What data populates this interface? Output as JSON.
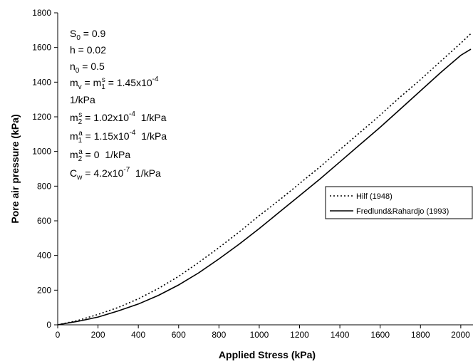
{
  "chart_data": {
    "type": "line",
    "xlabel": "Applied Stress (kPa)",
    "ylabel": "Pore air pressure (kPa)",
    "xlim": [
      0,
      2050
    ],
    "ylim": [
      0,
      1800
    ],
    "xticks": [
      0,
      200,
      400,
      600,
      800,
      1000,
      1200,
      1400,
      1600,
      1800,
      2000
    ],
    "yticks": [
      0,
      200,
      400,
      600,
      800,
      1000,
      1200,
      1400,
      1600,
      1800
    ],
    "grid": false,
    "legend_position": "right",
    "series": [
      {
        "name": "Hilf (1948)",
        "style": "dotted",
        "color": "#000000",
        "x": [
          0,
          100,
          200,
          300,
          400,
          500,
          600,
          700,
          800,
          900,
          1000,
          1100,
          1200,
          1300,
          1400,
          1500,
          1600,
          1700,
          1800,
          1900,
          2000,
          2050
        ],
        "y": [
          0,
          25,
          60,
          100,
          150,
          210,
          280,
          360,
          445,
          535,
          630,
          720,
          815,
          910,
          1010,
          1110,
          1210,
          1315,
          1415,
          1520,
          1625,
          1680
        ]
      },
      {
        "name": "Fredlund&Rahardjo (1993)",
        "style": "solid",
        "color": "#000000",
        "x": [
          0,
          100,
          200,
          300,
          400,
          500,
          600,
          700,
          800,
          900,
          1000,
          1100,
          1200,
          1300,
          1400,
          1500,
          1600,
          1700,
          1800,
          1900,
          2000,
          2050
        ],
        "y": [
          0,
          20,
          45,
          80,
          120,
          170,
          230,
          300,
          380,
          465,
          555,
          650,
          745,
          840,
          940,
          1040,
          1140,
          1245,
          1350,
          1455,
          1555,
          1590
        ]
      }
    ],
    "annotations": {
      "s0": {
        "base": "S",
        "sub": "0",
        "rest": " = 0.9"
      },
      "h": "h = 0.02",
      "n0": {
        "base": "n",
        "sub": "0",
        "rest": " = 0.5"
      },
      "mv": {
        "a": "m",
        "a_sub": "v",
        "b": " = m",
        "b_sub": "1",
        "b_sup": "s",
        "c": " = 1.45x10",
        "c_sup": "-4"
      },
      "mv_unit": "1/kPa",
      "m2s": {
        "a": "m",
        "a_sub": "2",
        "a_sup": "s",
        "b": " = 1.02x10",
        "b_sup": "-4",
        "c": "  1/kPa"
      },
      "m1a": {
        "a": "m",
        "a_sub": "1",
        "a_sup": "a",
        "b": " = 1.15x10",
        "b_sup": "-4",
        "c": "  1/kPa"
      },
      "m2a": {
        "a": "m",
        "a_sub": "2",
        "a_sup": "a",
        "b": " = 0  1/kPa"
      },
      "cw": {
        "a": "C",
        "a_sub": "w",
        "b": " = 4.2x10",
        "b_sup": "-7",
        "c": "  1/kPa"
      }
    }
  }
}
